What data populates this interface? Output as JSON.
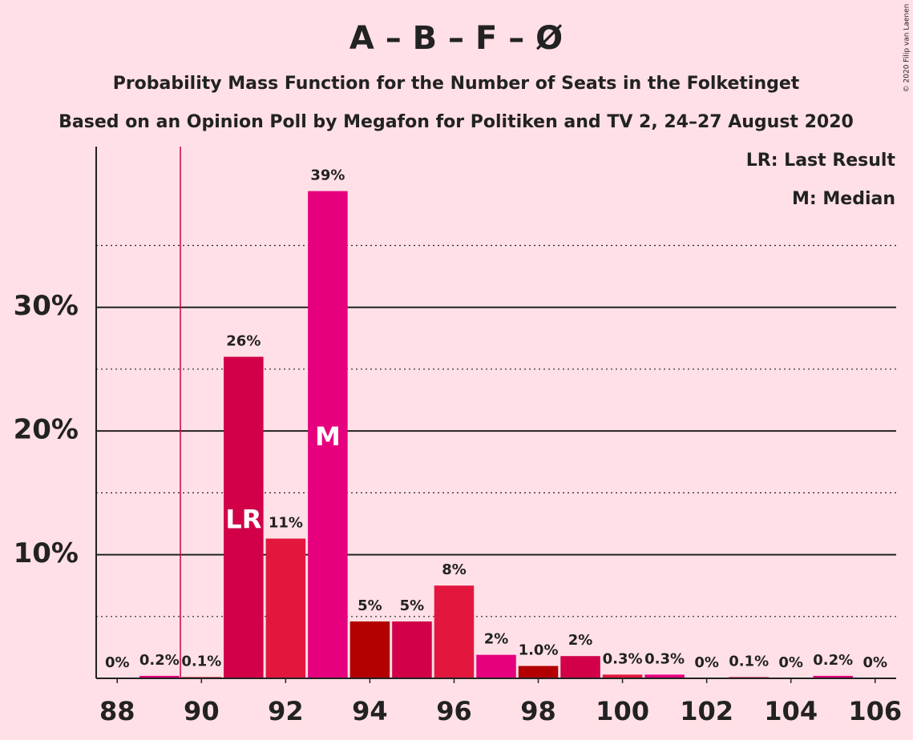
{
  "chart_data": {
    "type": "bar",
    "title": "A – B – F – Ø",
    "subtitle": "Probability Mass Function for the Number of Seats in the Folketinget",
    "subtitle2": "Based on an Opinion Poll by Megafon for Politiken and TV 2, 24–27 August 2020",
    "copyright": "© 2020 Filip van Laenen",
    "legend": [
      "LR: Last Result",
      "M: Median"
    ],
    "x": [
      88,
      89,
      90,
      91,
      92,
      93,
      94,
      95,
      96,
      97,
      98,
      99,
      100,
      101,
      102,
      103,
      104,
      105,
      106
    ],
    "values": [
      0,
      0.2,
      0.1,
      26,
      11.3,
      39.4,
      4.6,
      4.6,
      7.5,
      1.9,
      1.0,
      1.8,
      0.3,
      0.3,
      0,
      0.1,
      0,
      0.2,
      0
    ],
    "value_labels": [
      "0%",
      "0.2%",
      "0.1%",
      "26%",
      "11%",
      "39%",
      "5%",
      "5%",
      "8%",
      "2%",
      "1.0%",
      "2%",
      "0.3%",
      "0.3%",
      "0%",
      "0.1%",
      "0%",
      "0.2%",
      "0%"
    ],
    "colors": [
      "#e3173e",
      "#e6007e",
      "#b30000",
      "#d10049",
      "#e3173e",
      "#e6007e",
      "#b30000",
      "#d10049",
      "#e3173e",
      "#e6007e",
      "#b30000",
      "#d10049",
      "#e3173e",
      "#e6007e",
      "#b30000",
      "#d10049",
      "#e3173e",
      "#e6007e",
      "#b30000"
    ],
    "bar_annotations": [
      {
        "x": 91,
        "text": "LR"
      },
      {
        "x": 93,
        "text": "M"
      }
    ],
    "threshold": 89.5,
    "xlim": [
      87.5,
      106.5
    ],
    "xticks": [
      88,
      90,
      92,
      94,
      96,
      98,
      100,
      102,
      104,
      106
    ],
    "ylim": [
      0,
      43
    ],
    "yticks": [
      {
        "value": 10,
        "label": "10%"
      },
      {
        "value": 20,
        "label": "20%"
      },
      {
        "value": 30,
        "label": "30%"
      }
    ],
    "minor_yticks": [
      5,
      15,
      25,
      35
    ]
  }
}
